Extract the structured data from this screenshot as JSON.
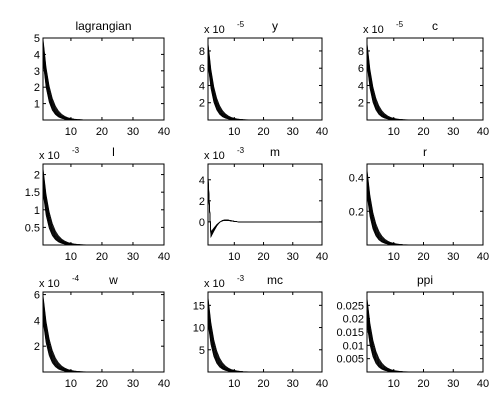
{
  "figure": {
    "background": "#ffffff",
    "axes_color": "#000000",
    "line_color": "#000000"
  },
  "chart_data": [
    {
      "type": "line",
      "title": "lagrangian",
      "exponent_label": "",
      "xlim": [
        1,
        40
      ],
      "ylim": [
        0,
        5
      ],
      "xticks": [
        10,
        20,
        30,
        40
      ],
      "yticks": [
        1,
        2,
        3,
        4,
        5
      ],
      "ytick_labels": [
        "1",
        "2",
        "3",
        "4",
        "5"
      ],
      "series_count": 12,
      "initial_range": [
        3.6,
        5.0
      ],
      "decay": 0.52
    },
    {
      "type": "line",
      "title": "y",
      "exponent_label": "x 10",
      "exponent_power": "-5",
      "xlim": [
        1,
        40
      ],
      "ylim": [
        0,
        9.5
      ],
      "xticks": [
        10,
        20,
        30,
        40
      ],
      "yticks": [
        2,
        4,
        6,
        8
      ],
      "ytick_labels": [
        "2",
        "4",
        "6",
        "8"
      ],
      "series_count": 12,
      "initial_range": [
        6.5,
        9.0
      ],
      "decay": 0.5
    },
    {
      "type": "line",
      "title": "c",
      "exponent_label": "x 10",
      "exponent_power": "-5",
      "xlim": [
        1,
        40
      ],
      "ylim": [
        0,
        9.5
      ],
      "xticks": [
        10,
        20,
        30,
        40
      ],
      "yticks": [
        2,
        4,
        6,
        8
      ],
      "ytick_labels": [
        "2",
        "4",
        "6",
        "8"
      ],
      "series_count": 12,
      "initial_range": [
        6.5,
        9.0
      ],
      "decay": 0.5
    },
    {
      "type": "line",
      "title": "l",
      "exponent_label": "x 10",
      "exponent_power": "-3",
      "xlim": [
        1,
        40
      ],
      "ylim": [
        0,
        2.3
      ],
      "xticks": [
        10,
        20,
        30,
        40
      ],
      "yticks": [
        0.5,
        1,
        1.5,
        2
      ],
      "ytick_labels": [
        "0.5",
        "1",
        "1.5",
        "2"
      ],
      "series_count": 12,
      "initial_range": [
        1.5,
        2.2
      ],
      "decay": 0.5
    },
    {
      "type": "line",
      "title": "m",
      "exponent_label": "x 10",
      "exponent_power": "-3",
      "xlim": [
        1,
        40
      ],
      "ylim": [
        -2.2,
        5.5
      ],
      "xticks": [
        10,
        20,
        30,
        40
      ],
      "yticks": [
        0,
        2,
        4
      ],
      "ytick_labels": [
        "0",
        "2",
        "4"
      ],
      "series_count": 12,
      "initial_range": [
        3.5,
        4.6
      ],
      "oscillating": true
    },
    {
      "type": "line",
      "title": "r",
      "exponent_label": "",
      "xlim": [
        1,
        40
      ],
      "ylim": [
        0,
        0.48
      ],
      "xticks": [
        10,
        20,
        30,
        40
      ],
      "yticks": [
        0.2,
        0.4
      ],
      "ytick_labels": [
        "0.2",
        "0.4"
      ],
      "series_count": 12,
      "initial_range": [
        0.3,
        0.45
      ],
      "decay": 0.5
    },
    {
      "type": "line",
      "title": "w",
      "exponent_label": "x 10",
      "exponent_power": "-4",
      "xlim": [
        1,
        40
      ],
      "ylim": [
        0,
        6.2
      ],
      "xticks": [
        10,
        20,
        30,
        40
      ],
      "yticks": [
        2,
        4,
        6
      ],
      "ytick_labels": [
        "2",
        "4",
        "6"
      ],
      "series_count": 12,
      "initial_range": [
        4.0,
        6.0
      ],
      "decay": 0.5
    },
    {
      "type": "line",
      "title": "mc",
      "exponent_label": "x 10",
      "exponent_power": "-3",
      "xlim": [
        1,
        40
      ],
      "ylim": [
        0,
        18
      ],
      "xticks": [
        10,
        20,
        30,
        40
      ],
      "yticks": [
        5,
        10,
        15
      ],
      "ytick_labels": [
        "5",
        "10",
        "15"
      ],
      "series_count": 12,
      "initial_range": [
        11,
        17
      ],
      "decay": 0.5
    },
    {
      "type": "line",
      "title": "ppi",
      "exponent_label": "",
      "xlim": [
        1,
        40
      ],
      "ylim": [
        0,
        0.03
      ],
      "xticks": [
        10,
        20,
        30,
        40
      ],
      "yticks": [
        0.005,
        0.01,
        0.015,
        0.02,
        0.025
      ],
      "ytick_labels": [
        "0.005",
        "0.01",
        "0.015",
        "0.02",
        "0.025"
      ],
      "series_count": 12,
      "initial_range": [
        0.018,
        0.028
      ],
      "decay": 0.5
    }
  ]
}
